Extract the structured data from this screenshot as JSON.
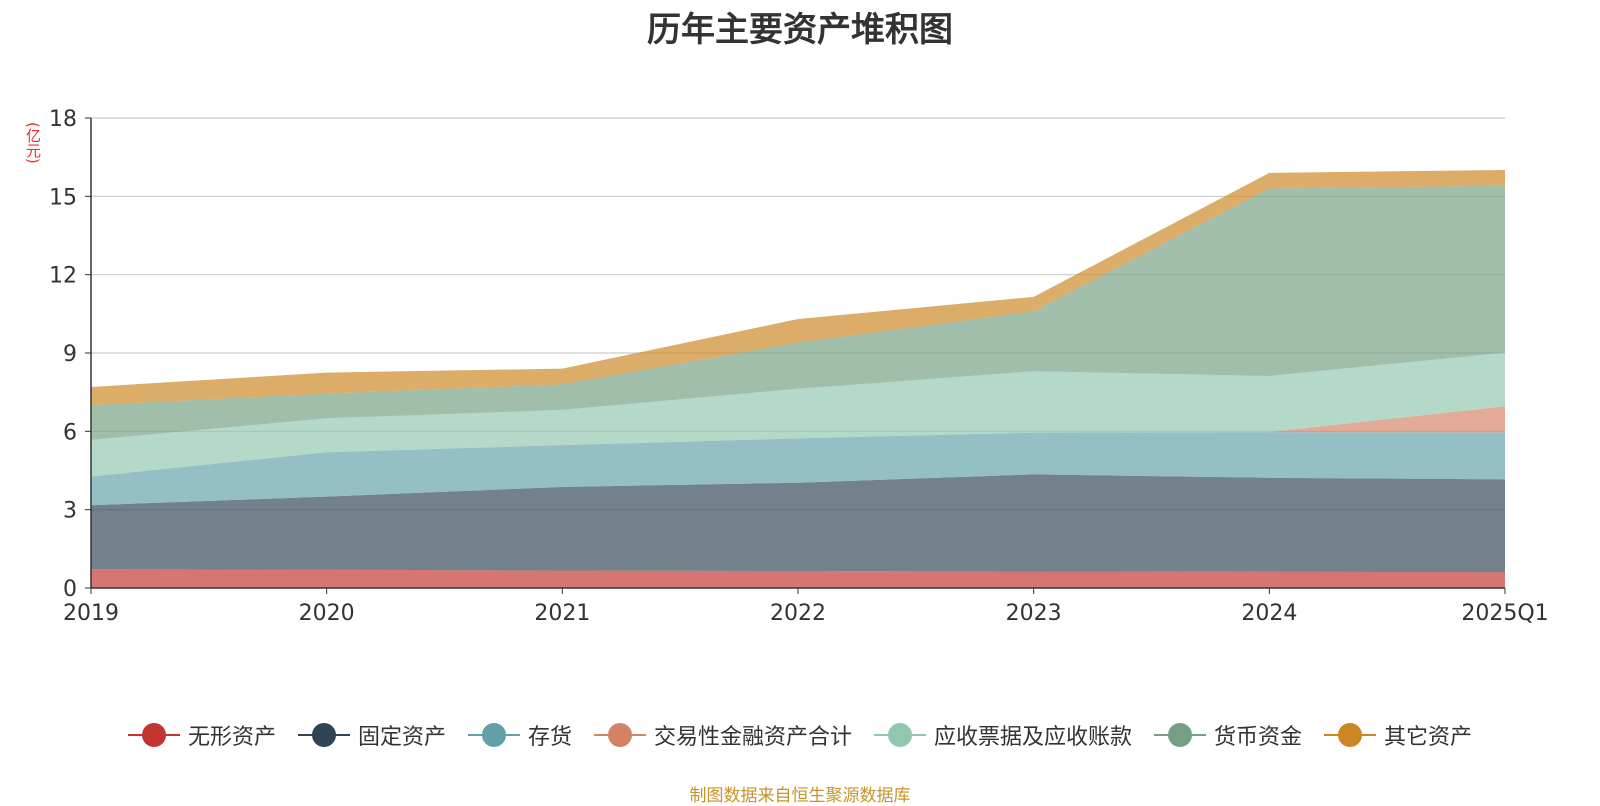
{
  "chart_data": {
    "type": "area",
    "stacked": true,
    "title": "历年主要资产堆积图",
    "ylabel": "(亿元)",
    "xlabel": "",
    "categories": [
      "2019",
      "2020",
      "2021",
      "2022",
      "2023",
      "2024",
      "2025Q1"
    ],
    "ylim": [
      0,
      18
    ],
    "yticks": [
      0,
      3,
      6,
      9,
      12,
      15,
      18
    ],
    "grid": true,
    "legend_position": "bottom",
    "series": [
      {
        "name": "无形资产",
        "color": "#c23531",
        "values": [
          0.72,
          0.7,
          0.67,
          0.65,
          0.63,
          0.62,
          0.61
        ]
      },
      {
        "name": "固定资产",
        "color": "#2f4554",
        "values": [
          2.45,
          2.8,
          3.2,
          3.38,
          3.72,
          3.6,
          3.55
        ]
      },
      {
        "name": "存货",
        "color": "#61a0a8",
        "values": [
          1.1,
          1.7,
          1.6,
          1.7,
          1.6,
          1.75,
          1.8
        ]
      },
      {
        "name": "交易性金融资产合计",
        "color": "#d48265",
        "values": [
          0,
          0,
          0,
          0,
          0,
          0,
          1.0
        ]
      },
      {
        "name": "应收票据及应收账款",
        "color": "#91c7ae",
        "values": [
          1.4,
          1.3,
          1.35,
          1.9,
          2.35,
          2.15,
          2.05
        ]
      },
      {
        "name": "货币资金",
        "color": "#749f83",
        "values": [
          1.33,
          0.95,
          0.98,
          1.77,
          2.3,
          7.18,
          6.4
        ]
      },
      {
        "name": "其它资产",
        "color": "#ca8622",
        "values": [
          0.7,
          0.8,
          0.6,
          0.9,
          0.55,
          0.6,
          0.6
        ]
      }
    ]
  },
  "source_note": "制图数据来自恒生聚源数据库"
}
